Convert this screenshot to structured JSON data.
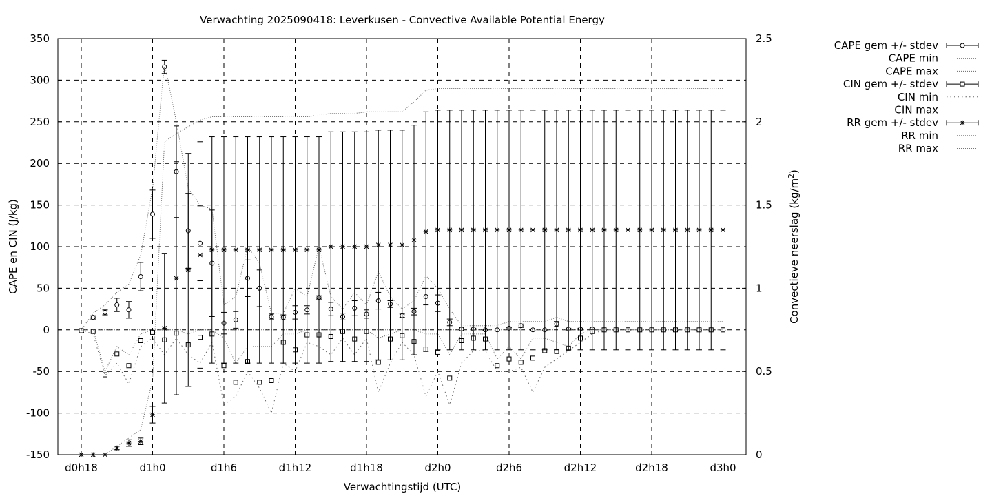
{
  "chart_data": {
    "type": "line",
    "title": "Verwachting 2025090418: Leverkusen - Convective Available Potential Energy",
    "xlabel": "Verwachtingstijd (UTC)",
    "ylabel": "CAPE en CIN (J/kg)",
    "y2label_main": "Convectieve neerslag (kg/m",
    "y2label_sup": "2",
    "y2label_end": ")",
    "xlim": [
      0,
      56
    ],
    "ylim": [
      -150,
      350
    ],
    "y2lim": [
      0,
      2.5
    ],
    "grid": true,
    "legend_position": "outside-right",
    "x_ticks": [
      {
        "x": 0,
        "label": "d0h18"
      },
      {
        "x": 6,
        "label": "d1h0"
      },
      {
        "x": 12,
        "label": "d1h6"
      },
      {
        "x": 18,
        "label": "d1h12"
      },
      {
        "x": 24,
        "label": "d1h18"
      },
      {
        "x": 30,
        "label": "d2h0"
      },
      {
        "x": 36,
        "label": "d2h6"
      },
      {
        "x": 42,
        "label": "d2h12"
      },
      {
        "x": 48,
        "label": "d2h18"
      },
      {
        "x": 54,
        "label": "d3h0"
      }
    ],
    "y_ticks": [
      "-150",
      "-100",
      "-50",
      "0",
      "50",
      "100",
      "150",
      "200",
      "250",
      "300",
      "350"
    ],
    "y2_ticks": [
      "0",
      "0.5",
      "1",
      "1.5",
      "2",
      "2.5"
    ],
    "legend": [
      {
        "label": "CAPE gem +/- stdev",
        "style": "errorbar",
        "marker": "circle"
      },
      {
        "label": "CAPE min",
        "style": "dotted-fine"
      },
      {
        "label": "CAPE max",
        "style": "dotted-fine"
      },
      {
        "label": "CIN gem +/- stdev",
        "style": "errorbar",
        "marker": "square"
      },
      {
        "label": "CIN min",
        "style": "dotted-coarse"
      },
      {
        "label": "CIN max",
        "style": "dotted-fine"
      },
      {
        "label": "RR gem +/- stdev",
        "style": "errorbar",
        "marker": "star"
      },
      {
        "label": "RR min",
        "style": "dotted-fine"
      },
      {
        "label": "RR max",
        "style": "dotted-fine"
      }
    ],
    "x": [
      0,
      1,
      2,
      3,
      4,
      5,
      6,
      7,
      8,
      9,
      10,
      11,
      12,
      13,
      14,
      15,
      16,
      17,
      18,
      19,
      20,
      21,
      22,
      23,
      24,
      25,
      26,
      27,
      28,
      29,
      30,
      31,
      32,
      33,
      34,
      35,
      36,
      37,
      38,
      39,
      40,
      41,
      42,
      43,
      44,
      45,
      46,
      47,
      48,
      49,
      50,
      51,
      52,
      53,
      54
    ],
    "series": [
      {
        "name": "CAPE gem +/- stdev",
        "axis": "y",
        "marker": "circle",
        "values": [
          -1,
          15,
          21,
          30,
          24,
          64,
          139,
          316,
          190,
          119,
          104,
          80,
          8,
          12,
          62,
          50,
          16,
          15,
          21,
          24,
          39,
          25,
          16,
          26,
          19,
          35,
          31,
          17,
          22,
          40,
          32,
          9,
          1,
          1,
          0,
          0,
          2,
          5,
          0,
          0,
          7,
          1,
          1,
          1,
          0,
          0,
          0,
          0,
          0,
          0,
          0,
          0,
          0,
          0,
          0
        ],
        "err": [
          2,
          2,
          3,
          8,
          10,
          17,
          29,
          8,
          55,
          45,
          45,
          64,
          13,
          10,
          22,
          22,
          3,
          3,
          8,
          5,
          2,
          8,
          4,
          9,
          5,
          10,
          4,
          2,
          4,
          10,
          10,
          4,
          2,
          1,
          1,
          1,
          1,
          2,
          1,
          1,
          3,
          1,
          1,
          1,
          1,
          1,
          1,
          1,
          1,
          1,
          1,
          1,
          1,
          1,
          1
        ]
      },
      {
        "name": "CAPE min",
        "axis": "y",
        "line": "dotted-fine",
        "values": [
          0,
          0,
          0,
          0,
          0,
          0,
          0,
          0,
          0,
          0,
          0,
          0,
          0,
          0,
          0,
          0,
          0,
          0,
          0,
          0,
          0,
          0,
          0,
          0,
          0,
          0,
          0,
          0,
          0,
          0,
          0,
          0,
          0,
          0,
          0,
          0,
          0,
          0,
          0,
          0,
          0,
          0,
          0,
          0,
          0,
          0,
          0,
          0,
          0,
          0,
          0,
          0,
          0,
          0,
          0
        ]
      },
      {
        "name": "CAPE max",
        "axis": "y",
        "line": "dotted-fine",
        "values": [
          0,
          20,
          30,
          45,
          55,
          90,
          170,
          320,
          250,
          170,
          150,
          145,
          30,
          40,
          100,
          80,
          20,
          20,
          50,
          40,
          100,
          40,
          25,
          45,
          30,
          70,
          40,
          25,
          35,
          65,
          50,
          25,
          5,
          5,
          5,
          5,
          10,
          10,
          10,
          10,
          15,
          10,
          10,
          10,
          10,
          10,
          10,
          10,
          10,
          10,
          10,
          10,
          10,
          10,
          10
        ]
      },
      {
        "name": "CIN gem +/- stdev",
        "axis": "y",
        "marker": "square",
        "values": [
          -1,
          -2,
          -54,
          -29,
          -43,
          -13,
          -3,
          -12,
          -4,
          -18,
          -9,
          -5,
          -43,
          -63,
          -38,
          -63,
          -61,
          -15,
          -24,
          -6,
          -6,
          -8,
          -2,
          -11,
          -2,
          -39,
          -11,
          -7,
          -14,
          -23,
          -27,
          -58,
          -13,
          -10,
          -11,
          -43,
          -35,
          -39,
          -34,
          -25,
          -26,
          -22,
          -10,
          -2,
          0,
          0,
          0,
          0,
          0,
          0,
          0,
          0,
          0,
          0,
          0
        ]
      },
      {
        "name": "CIN min",
        "axis": "y",
        "line": "dotted-coarse",
        "values": [
          0,
          -5,
          -55,
          -40,
          -65,
          -20,
          -10,
          -30,
          -10,
          -30,
          -40,
          -15,
          -90,
          -80,
          -50,
          -70,
          -100,
          -40,
          -50,
          -15,
          -20,
          -30,
          -10,
          -30,
          -10,
          -75,
          -40,
          -15,
          -30,
          -80,
          -50,
          -90,
          -40,
          -25,
          -25,
          -50,
          -50,
          -45,
          -75,
          -45,
          -35,
          -25,
          -15,
          -5,
          0,
          0,
          0,
          0,
          0,
          0,
          0,
          0,
          0,
          0,
          0
        ]
      },
      {
        "name": "CIN max",
        "axis": "y",
        "line": "dotted-fine",
        "values": [
          0,
          0,
          -50,
          -20,
          -30,
          -5,
          0,
          0,
          0,
          -5,
          0,
          0,
          -10,
          -40,
          -20,
          -20,
          -20,
          -5,
          -5,
          0,
          0,
          0,
          0,
          0,
          0,
          -10,
          -5,
          0,
          0,
          -5,
          -5,
          -30,
          -5,
          -5,
          -5,
          -35,
          -20,
          -35,
          -10,
          -10,
          -15,
          -20,
          -5,
          0,
          0,
          0,
          0,
          0,
          0,
          0,
          0,
          0,
          0,
          0,
          0
        ]
      },
      {
        "name": "RR gem +/- stdev",
        "axis": "y2",
        "marker": "star",
        "values": [
          0.0,
          0.0,
          0.0,
          0.04,
          0.07,
          0.08,
          0.24,
          0.76,
          1.06,
          1.11,
          1.2,
          1.23,
          1.23,
          1.23,
          1.23,
          1.23,
          1.23,
          1.23,
          1.23,
          1.23,
          1.23,
          1.25,
          1.25,
          1.25,
          1.25,
          1.26,
          1.26,
          1.26,
          1.29,
          1.34,
          1.35,
          1.35,
          1.35,
          1.35,
          1.35,
          1.35,
          1.35,
          1.35,
          1.35,
          1.35,
          1.35,
          1.35,
          1.35,
          1.35,
          1.35,
          1.35,
          1.35,
          1.35,
          1.35,
          1.35,
          1.35,
          1.35,
          1.35,
          1.35,
          1.35
        ],
        "err": [
          0.0,
          0.0,
          0.0,
          0.01,
          0.02,
          0.02,
          0.05,
          0.45,
          0.7,
          0.7,
          0.68,
          0.68,
          0.68,
          0.68,
          0.68,
          0.68,
          0.68,
          0.68,
          0.68,
          0.68,
          0.68,
          0.69,
          0.69,
          0.69,
          0.69,
          0.69,
          0.69,
          0.69,
          0.69,
          0.72,
          0.72,
          0.72,
          0.72,
          0.72,
          0.72,
          0.72,
          0.72,
          0.72,
          0.72,
          0.72,
          0.72,
          0.72,
          0.72,
          0.72,
          0.72,
          0.72,
          0.72,
          0.72,
          0.72,
          0.72,
          0.72,
          0.72,
          0.72,
          0.72,
          0.72
        ]
      },
      {
        "name": "RR min",
        "axis": "y2",
        "line": "dotted-fine",
        "values": [
          0.0,
          0.0,
          0.0,
          0.0,
          0.0,
          0.0,
          0.0,
          0.0,
          0.0,
          0.0,
          0.0,
          0.0,
          0.0,
          0.0,
          0.0,
          0.0,
          0.0,
          0.0,
          0.0,
          0.0,
          0.0,
          0.0,
          0.0,
          0.0,
          0.0,
          0.0,
          0.0,
          0.0,
          0.0,
          0.0,
          0.0,
          0.0,
          0.0,
          0.0,
          0.0,
          0.0,
          0.0,
          0.0,
          0.0,
          0.0,
          0.0,
          0.0,
          0.0,
          0.0,
          0.0,
          0.0,
          0.0,
          0.0,
          0.0,
          0.0,
          0.0,
          0.0,
          0.0,
          0.0,
          0.0
        ]
      },
      {
        "name": "RR max",
        "axis": "y2",
        "line": "dotted-fine",
        "values": [
          0.0,
          0.0,
          0.0,
          0.05,
          0.1,
          0.15,
          0.45,
          1.88,
          1.93,
          1.97,
          2.01,
          2.03,
          2.03,
          2.03,
          2.03,
          2.03,
          2.03,
          2.03,
          2.03,
          2.03,
          2.04,
          2.05,
          2.05,
          2.05,
          2.06,
          2.06,
          2.06,
          2.06,
          2.12,
          2.19,
          2.2,
          2.2,
          2.2,
          2.2,
          2.2,
          2.2,
          2.2,
          2.2,
          2.2,
          2.2,
          2.2,
          2.2,
          2.2,
          2.2,
          2.2,
          2.2,
          2.2,
          2.2,
          2.2,
          2.2,
          2.2,
          2.2,
          2.2,
          2.2,
          2.2
        ]
      }
    ]
  }
}
